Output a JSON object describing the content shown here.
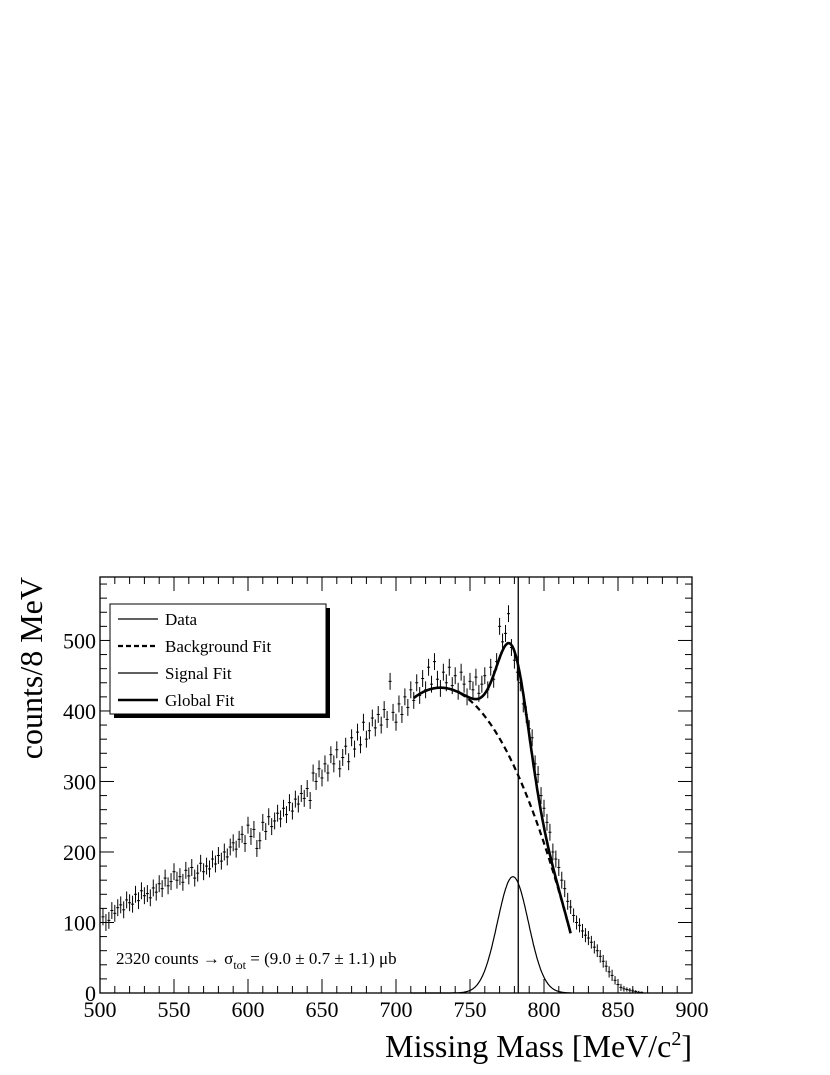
{
  "chart_data": {
    "type": "scatter",
    "title": "",
    "xlabel": "Missing Mass [MeV/c",
    "xlabel_sup": "2",
    "xlabel_end": "]",
    "ylabel": "counts/8 MeV",
    "xlim": [
      500,
      900
    ],
    "ylim": [
      0,
      590
    ],
    "x_ticks": [
      500,
      550,
      600,
      650,
      700,
      750,
      800,
      850,
      900
    ],
    "y_ticks": [
      0,
      100,
      200,
      300,
      400,
      500
    ],
    "grid": false,
    "legend_position": "top-left",
    "legend": [
      {
        "label": "Data",
        "style": "thin-solid"
      },
      {
        "label": "Background Fit",
        "style": "dashed"
      },
      {
        "label": "Signal Fit",
        "style": "thin-solid"
      },
      {
        "label": "Global Fit",
        "style": "thick-solid"
      }
    ],
    "vertical_line_x": 782.6,
    "annotation": {
      "prefix": "2320 counts → σ",
      "subscript": "tot",
      "suffix": " = (9.0 ± 0.7 ± 1.1) μb"
    },
    "data_points": [
      [
        502,
        108,
        12
      ],
      [
        504,
        100,
        12
      ],
      [
        506,
        103,
        12
      ],
      [
        508,
        117,
        12
      ],
      [
        510,
        113,
        12
      ],
      [
        512,
        121,
        12
      ],
      [
        514,
        125,
        12
      ],
      [
        516,
        118,
        12
      ],
      [
        518,
        132,
        12
      ],
      [
        520,
        128,
        12
      ],
      [
        522,
        126,
        12
      ],
      [
        524,
        140,
        12
      ],
      [
        526,
        131,
        12
      ],
      [
        528,
        145,
        12
      ],
      [
        530,
        138,
        12
      ],
      [
        532,
        141,
        12
      ],
      [
        534,
        135,
        12
      ],
      [
        536,
        149,
        12
      ],
      [
        538,
        143,
        12
      ],
      [
        540,
        155,
        12
      ],
      [
        542,
        148,
        12
      ],
      [
        544,
        163,
        12
      ],
      [
        546,
        152,
        12
      ],
      [
        548,
        158,
        12
      ],
      [
        550,
        172,
        12
      ],
      [
        552,
        160,
        12
      ],
      [
        554,
        165,
        12
      ],
      [
        556,
        157,
        12
      ],
      [
        558,
        174,
        12
      ],
      [
        560,
        166,
        12
      ],
      [
        562,
        178,
        12
      ],
      [
        564,
        163,
        12
      ],
      [
        566,
        170,
        12
      ],
      [
        568,
        184,
        12
      ],
      [
        570,
        172,
        12
      ],
      [
        572,
        180,
        12
      ],
      [
        574,
        176,
        12
      ],
      [
        576,
        190,
        12
      ],
      [
        578,
        183,
        12
      ],
      [
        580,
        195,
        12
      ],
      [
        582,
        187,
        12
      ],
      [
        584,
        200,
        12
      ],
      [
        586,
        193,
        12
      ],
      [
        588,
        207,
        12
      ],
      [
        590,
        213,
        12
      ],
      [
        592,
        204,
        12
      ],
      [
        594,
        218,
        12
      ],
      [
        596,
        225,
        12
      ],
      [
        598,
        212,
        12
      ],
      [
        600,
        238,
        12
      ],
      [
        602,
        222,
        12
      ],
      [
        604,
        232,
        12
      ],
      [
        606,
        205,
        12
      ],
      [
        608,
        216,
        12
      ],
      [
        610,
        242,
        12
      ],
      [
        612,
        229,
        12
      ],
      [
        614,
        250,
        12
      ],
      [
        616,
        236,
        12
      ],
      [
        618,
        244,
        12
      ],
      [
        620,
        255,
        12
      ],
      [
        622,
        247,
        12
      ],
      [
        624,
        262,
        12
      ],
      [
        626,
        253,
        12
      ],
      [
        628,
        270,
        12
      ],
      [
        630,
        258,
        12
      ],
      [
        632,
        275,
        12
      ],
      [
        634,
        268,
        12
      ],
      [
        636,
        283,
        12
      ],
      [
        638,
        276,
        12
      ],
      [
        640,
        290,
        12
      ],
      [
        642,
        273,
        12
      ],
      [
        644,
        312,
        12
      ],
      [
        646,
        300,
        12
      ],
      [
        648,
        318,
        12
      ],
      [
        650,
        305,
        12
      ],
      [
        652,
        325,
        12
      ],
      [
        654,
        312,
        12
      ],
      [
        656,
        338,
        12
      ],
      [
        658,
        325,
        12
      ],
      [
        660,
        345,
        12
      ],
      [
        662,
        318,
        12
      ],
      [
        664,
        334,
        12
      ],
      [
        666,
        350,
        12
      ],
      [
        668,
        328,
        12
      ],
      [
        670,
        362,
        12
      ],
      [
        672,
        346,
        12
      ],
      [
        674,
        370,
        12
      ],
      [
        676,
        352,
        12
      ],
      [
        678,
        384,
        12
      ],
      [
        680,
        360,
        12
      ],
      [
        682,
        372,
        12
      ],
      [
        684,
        390,
        12
      ],
      [
        686,
        376,
        12
      ],
      [
        688,
        395,
        12
      ],
      [
        690,
        380,
        12
      ],
      [
        692,
        402,
        12
      ],
      [
        694,
        388,
        12
      ],
      [
        696,
        442,
        12
      ],
      [
        698,
        398,
        12
      ],
      [
        700,
        384,
        12
      ],
      [
        702,
        410,
        12
      ],
      [
        704,
        395,
        12
      ],
      [
        706,
        420,
        12
      ],
      [
        708,
        405,
        12
      ],
      [
        710,
        430,
        12
      ],
      [
        712,
        415,
        12
      ],
      [
        714,
        440,
        12
      ],
      [
        716,
        422,
        12
      ],
      [
        718,
        446,
        12
      ],
      [
        720,
        430,
        12
      ],
      [
        722,
        462,
        12
      ],
      [
        724,
        438,
        12
      ],
      [
        726,
        470,
        12
      ],
      [
        728,
        445,
        12
      ],
      [
        730,
        432,
        12
      ],
      [
        732,
        455,
        12
      ],
      [
        734,
        440,
        12
      ],
      [
        736,
        462,
        12
      ],
      [
        738,
        436,
        12
      ],
      [
        740,
        450,
        12
      ],
      [
        742,
        428,
        12
      ],
      [
        744,
        455,
        12
      ],
      [
        746,
        438,
        12
      ],
      [
        748,
        420,
        12
      ],
      [
        750,
        442,
        12
      ],
      [
        752,
        430,
        12
      ],
      [
        754,
        448,
        12
      ],
      [
        756,
        425,
        12
      ],
      [
        758,
        438,
        12
      ],
      [
        760,
        450,
        12
      ],
      [
        762,
        430,
        12
      ],
      [
        764,
        462,
        12
      ],
      [
        766,
        445,
        12
      ],
      [
        768,
        470,
        12
      ],
      [
        770,
        520,
        12
      ],
      [
        772,
        498,
        12
      ],
      [
        774,
        510,
        12
      ],
      [
        776,
        538,
        12
      ],
      [
        778,
        490,
        12
      ],
      [
        780,
        472,
        12
      ],
      [
        782,
        455,
        12
      ],
      [
        784,
        440,
        12
      ],
      [
        786,
        410,
        12
      ],
      [
        788,
        395,
        12
      ],
      [
        790,
        375,
        12
      ],
      [
        792,
        362,
        12
      ],
      [
        794,
        325,
        12
      ],
      [
        796,
        310,
        12
      ],
      [
        798,
        280,
        12
      ],
      [
        800,
        262,
        12
      ],
      [
        802,
        242,
        12
      ],
      [
        804,
        228,
        12
      ],
      [
        806,
        200,
        12
      ],
      [
        808,
        190,
        12
      ],
      [
        810,
        178,
        12
      ],
      [
        812,
        160,
        12
      ],
      [
        814,
        148,
        12
      ],
      [
        816,
        130,
        12
      ],
      [
        818,
        122,
        10
      ],
      [
        820,
        110,
        10
      ],
      [
        822,
        100,
        10
      ],
      [
        824,
        96,
        10
      ],
      [
        826,
        88,
        10
      ],
      [
        828,
        82,
        10
      ],
      [
        830,
        78,
        10
      ],
      [
        832,
        72,
        9
      ],
      [
        834,
        65,
        9
      ],
      [
        836,
        60,
        9
      ],
      [
        838,
        52,
        9
      ],
      [
        840,
        45,
        9
      ],
      [
        842,
        38,
        8
      ],
      [
        844,
        30,
        8
      ],
      [
        846,
        25,
        8
      ],
      [
        848,
        18,
        6
      ],
      [
        850,
        12,
        6
      ],
      [
        852,
        8,
        5
      ],
      [
        854,
        6,
        4
      ],
      [
        856,
        5,
        3
      ],
      [
        858,
        4,
        3
      ],
      [
        860,
        3,
        3
      ],
      [
        862,
        2,
        2
      ],
      [
        864,
        1,
        2
      ],
      [
        866,
        1,
        1
      ]
    ]
  }
}
